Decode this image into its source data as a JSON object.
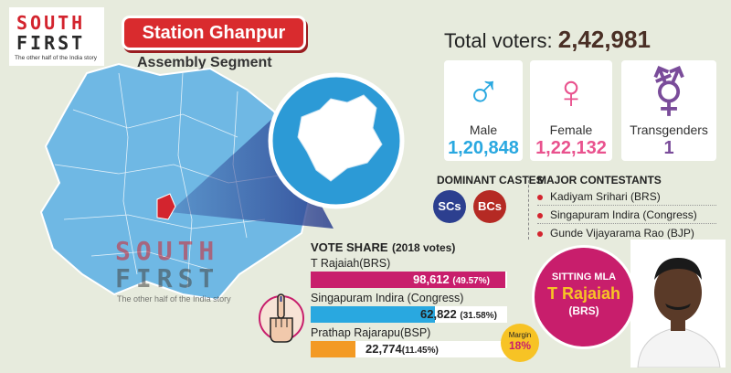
{
  "logo": {
    "line1": "SOUTH",
    "line2": "FIRST",
    "tagline": "The other half of the India story"
  },
  "title": "Station Ghanpur",
  "subtitle": "Assembly Segment",
  "total_voters": {
    "label": "Total voters:",
    "value": "2,42,981"
  },
  "voters": [
    {
      "label": "Male",
      "value": "1,20,848",
      "icon": "male-icon",
      "color": "#29a8e0"
    },
    {
      "label": "Female",
      "value": "1,22,132",
      "icon": "female-icon",
      "color": "#e9528e"
    },
    {
      "label": "Transgenders",
      "value": "1",
      "icon": "transgender-icon",
      "color": "#7a4c9a"
    }
  ],
  "castes": {
    "heading": "DOMINANT CASTES",
    "items": [
      "SCs",
      "BCs"
    ],
    "colors": [
      "#2c3f8f",
      "#b52a24"
    ]
  },
  "contestants": {
    "heading": "MAJOR CONTESTANTS",
    "items": [
      "Kadiyam Srihari (BRS)",
      "Singapuram Indira (Congress)",
      "Gunde Vijayarama Rao (BJP)"
    ]
  },
  "vote_share": {
    "heading": "VOTE SHARE",
    "heading_note": "(2018 votes)",
    "rows": [
      {
        "name": "T Rajaiah(BRS)",
        "votes": "98,612",
        "pct": "(49.57%)",
        "fraction": 0.4957,
        "color": "#c81e6c"
      },
      {
        "name": "Singapuram Indira (Congress)",
        "votes": "62,822",
        "pct": "(31.58%)",
        "fraction": 0.3158,
        "color": "#29a8e0"
      },
      {
        "name": "Prathap Rajarapu(BSP)",
        "votes": "22,774",
        "pct": "(11.45%)",
        "fraction": 0.1145,
        "color": "#f39a24"
      }
    ]
  },
  "margin": {
    "label": "Margin",
    "value": "18%"
  },
  "mla": {
    "label": "SITTING MLA",
    "name": "T Rajaiah",
    "party": "(BRS)"
  },
  "watermark": {
    "line1": "SOUTH",
    "line2": "FIRST",
    "tagline": "The other half of the India story"
  }
}
